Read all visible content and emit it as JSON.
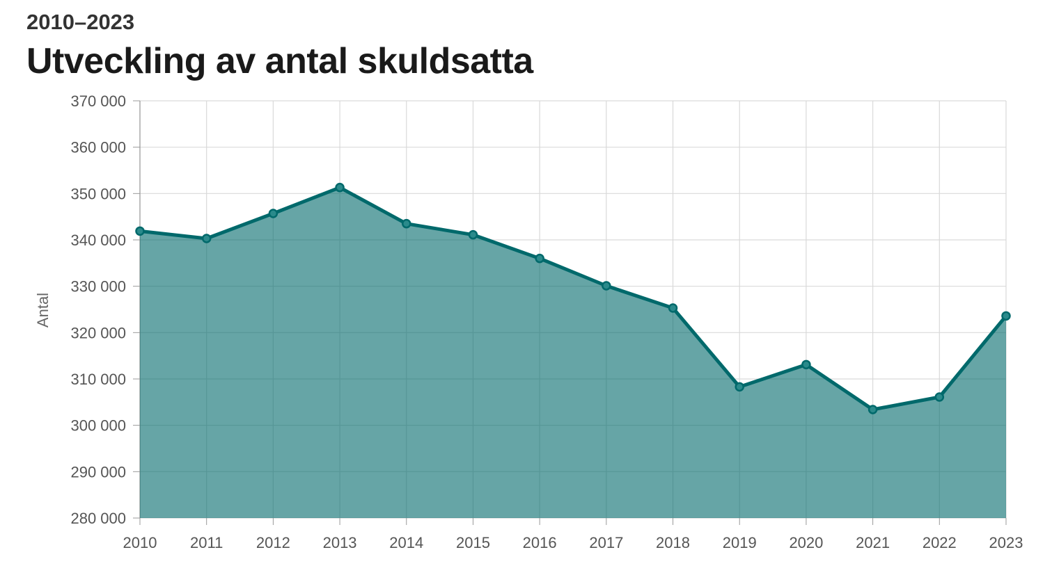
{
  "chart_data": {
    "type": "area",
    "subtitle": "2010–2023",
    "title": "Utveckling av antal skuldsatta",
    "ylabel": "Antal",
    "xlabel": "",
    "ylim": [
      280000,
      370000
    ],
    "yticks": [
      280000,
      290000,
      300000,
      310000,
      320000,
      330000,
      340000,
      350000,
      360000,
      370000
    ],
    "ytick_labels": [
      "280 000",
      "290 000",
      "300 000",
      "310 000",
      "320 000",
      "330 000",
      "340 000",
      "350 000",
      "360 000",
      "370 000"
    ],
    "x": [
      "2010",
      "2011",
      "2012",
      "2013",
      "2014",
      "2015",
      "2016",
      "2017",
      "2018",
      "2019",
      "2020",
      "2021",
      "2022",
      "2023"
    ],
    "values": [
      341900,
      340300,
      345700,
      351300,
      343500,
      341100,
      336000,
      330100,
      325300,
      308300,
      313100,
      303400,
      306100,
      323600
    ],
    "grid": true,
    "colors": {
      "line": "#00696b",
      "fill": "#00696b",
      "grid": "#d9d9d9"
    }
  }
}
